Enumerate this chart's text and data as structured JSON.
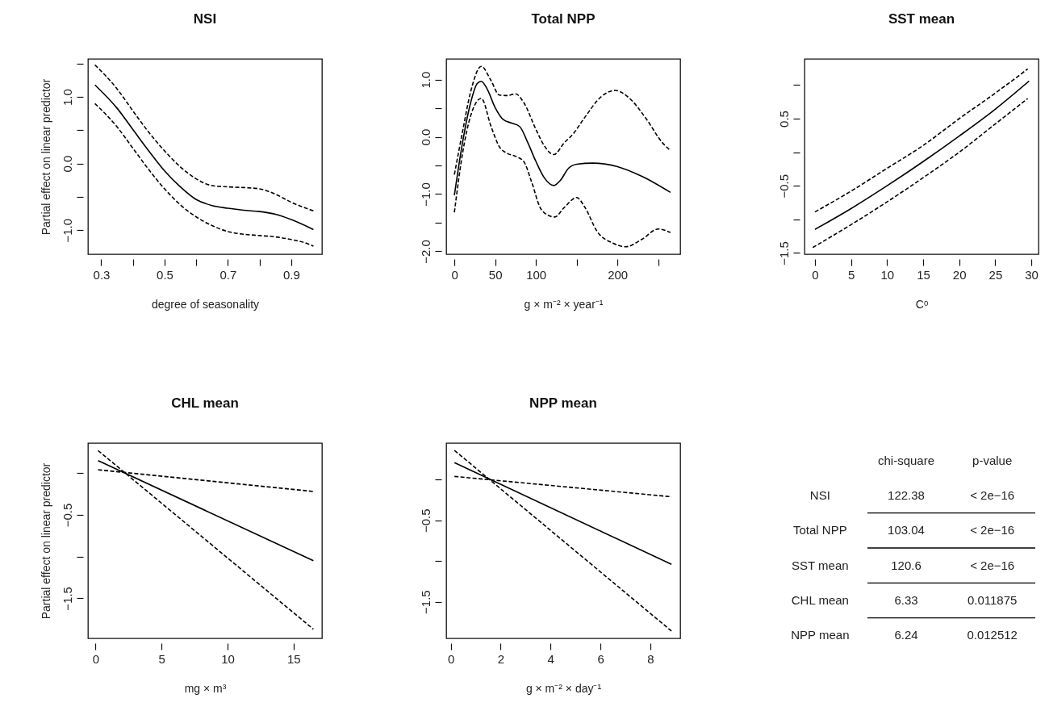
{
  "chart_data": [
    {
      "type": "line",
      "title": "NSI",
      "xlabel": "degree of seasonality",
      "ylabel": "Partial effect on linear predictor",
      "xlim": [
        0.258,
        0.997
      ],
      "ylim": [
        -1.36,
        1.57
      ],
      "xticks": [
        0.3,
        {
          "value": 0.4,
          "label": null
        },
        0.5,
        {
          "value": 0.6,
          "label": null
        },
        0.7,
        {
          "value": 0.8,
          "label": null
        },
        0.9
      ],
      "yticks": [
        {
          "value": -1,
          "label": "−1.0"
        },
        {
          "value": -0.5,
          "label": null
        },
        {
          "value": 0,
          "label": "0.0"
        },
        {
          "value": 0.5,
          "label": null
        },
        {
          "value": 1,
          "label": "1.0"
        },
        {
          "value": 1.5,
          "label": null
        }
      ],
      "series": [
        {
          "color": "#000000",
          "line_style": "solid",
          "x": [
            0.28,
            0.35,
            0.4,
            0.45,
            0.5,
            0.55,
            0.6,
            0.65,
            0.7,
            0.75,
            0.8,
            0.85,
            0.9,
            0.97
          ],
          "values": [
            1.18,
            0.83,
            0.51,
            0.19,
            -0.11,
            -0.35,
            -0.54,
            -0.63,
            -0.67,
            -0.7,
            -0.72,
            -0.76,
            -0.84,
            -0.99
          ]
        },
        {
          "color": "#000000",
          "line_style": "dashed",
          "x": [
            0.28,
            0.35,
            0.4,
            0.45,
            0.5,
            0.55,
            0.6,
            0.65,
            0.7,
            0.75,
            0.8,
            0.85,
            0.9,
            0.97
          ],
          "values": [
            1.48,
            1.12,
            0.79,
            0.47,
            0.19,
            -0.05,
            -0.23,
            -0.33,
            -0.35,
            -0.36,
            -0.38,
            -0.46,
            -0.58,
            -0.71
          ]
        },
        {
          "color": "#000000",
          "line_style": "dashed",
          "x": [
            0.28,
            0.35,
            0.4,
            0.45,
            0.5,
            0.55,
            0.6,
            0.65,
            0.7,
            0.75,
            0.8,
            0.85,
            0.9,
            0.95,
            0.97
          ],
          "values": [
            0.9,
            0.55,
            0.23,
            -0.09,
            -0.38,
            -0.62,
            -0.8,
            -0.93,
            -1.02,
            -1.06,
            -1.08,
            -1.1,
            -1.14,
            -1.2,
            -1.24
          ]
        }
      ]
    },
    {
      "type": "line",
      "title": "Total NPP",
      "xlabel": "g × m⁻² × year⁻¹",
      "xlim": [
        -10,
        277
      ],
      "ylim": [
        -2.05,
        1.36
      ],
      "xticks": [
        0,
        50,
        100,
        {
          "value": 150,
          "label": null
        },
        200,
        {
          "value": 250,
          "label": null
        }
      ],
      "yticks": [
        {
          "value": -2,
          "label": "−2.0"
        },
        {
          "value": -1.5,
          "label": null
        },
        {
          "value": -1,
          "label": "−1.0"
        },
        {
          "value": -0.5,
          "label": null
        },
        {
          "value": 0,
          "label": "0.0"
        },
        {
          "value": 0.5,
          "label": null
        },
        {
          "value": 1,
          "label": "1.0"
        }
      ],
      "series": [
        {
          "color": "#000000",
          "line_style": "solid",
          "x": [
            0,
            10,
            20,
            28,
            33,
            40,
            50,
            60,
            70,
            80,
            90,
            100,
            110,
            122,
            130,
            140,
            150,
            170,
            200,
            230,
            265
          ],
          "values": [
            -1.02,
            -0.1,
            0.6,
            0.93,
            0.97,
            0.84,
            0.51,
            0.3,
            0.24,
            0.18,
            -0.1,
            -0.43,
            -0.71,
            -0.85,
            -0.76,
            -0.55,
            -0.48,
            -0.46,
            -0.52,
            -0.69,
            -0.97
          ]
        },
        {
          "color": "#000000",
          "line_style": "dashed",
          "x": [
            0,
            10,
            20,
            33,
            45,
            55,
            65,
            75,
            85,
            100,
            110,
            122,
            135,
            145,
            160,
            180,
            197,
            215,
            235,
            255,
            265
          ],
          "values": [
            -0.66,
            0.09,
            0.79,
            1.23,
            0.98,
            0.73,
            0.72,
            0.75,
            0.6,
            0.13,
            -0.15,
            -0.31,
            -0.1,
            0.04,
            0.34,
            0.7,
            0.81,
            0.67,
            0.32,
            -0.1,
            -0.24
          ]
        },
        {
          "color": "#000000",
          "line_style": "dashed",
          "x": [
            0,
            10,
            20,
            33,
            45,
            55,
            65,
            75,
            85,
            95,
            105,
            115,
            123,
            135,
            150,
            160,
            175,
            195,
            210,
            230,
            250,
            265
          ],
          "values": [
            -1.32,
            -0.29,
            0.37,
            0.67,
            0.18,
            -0.17,
            -0.29,
            -0.34,
            -0.43,
            -0.8,
            -1.23,
            -1.37,
            -1.4,
            -1.23,
            -1.06,
            -1.23,
            -1.65,
            -1.86,
            -1.92,
            -1.79,
            -1.61,
            -1.67
          ]
        }
      ]
    },
    {
      "type": "line",
      "title": "SST mean",
      "xlabel": "Cᵒ",
      "xlim": [
        -1.45,
        31
      ],
      "ylim": [
        -1.52,
        1.39
      ],
      "xticks": [
        0,
        5,
        10,
        15,
        20,
        25,
        30
      ],
      "yticks": [
        {
          "value": -1.5,
          "label": "−1.5"
        },
        {
          "value": -1,
          "label": null
        },
        {
          "value": -0.5,
          "label": "−0.5"
        },
        {
          "value": 0,
          "label": null
        },
        0.5,
        {
          "value": 1,
          "label": null
        }
      ],
      "series": [
        {
          "color": "#000000",
          "line_style": "solid",
          "x": [
            0,
            5,
            10,
            15,
            20,
            25,
            29.7
          ],
          "values": [
            -1.15,
            -0.84,
            -0.5,
            -0.14,
            0.24,
            0.64,
            1.06
          ]
        },
        {
          "color": "#000000",
          "line_style": "dashed",
          "x": [
            0,
            5,
            10,
            15,
            20,
            25,
            29.5
          ],
          "values": [
            -0.89,
            -0.58,
            -0.24,
            0.1,
            0.5,
            0.88,
            1.24
          ]
        },
        {
          "color": "#000000",
          "line_style": "dashed",
          "x": [
            -0.3,
            5,
            10,
            15,
            20,
            25,
            29.5
          ],
          "values": [
            -1.42,
            -1.08,
            -0.74,
            -0.38,
            0,
            0.42,
            0.8
          ]
        }
      ]
    },
    {
      "type": "line",
      "title": "CHL mean",
      "xlabel": "mg × m³",
      "ylabel": "Partial effect on linear predictor",
      "xlim": [
        -0.57,
        17.15
      ],
      "ylim": [
        -1.98,
        0.36
      ],
      "xticks": [
        0,
        5,
        10,
        15
      ],
      "yticks": [
        {
          "value": -1.5,
          "label": "−1.5"
        },
        {
          "value": -1,
          "label": null
        },
        {
          "value": -0.5,
          "label": "−0.5"
        },
        {
          "value": 0,
          "label": null
        }
      ],
      "series": [
        {
          "color": "#000000",
          "line_style": "solid",
          "x": [
            0.2,
            16.5
          ],
          "values": [
            0.15,
            -1.05
          ]
        },
        {
          "color": "#000000",
          "line_style": "dashed",
          "x": [
            0.2,
            16.5
          ],
          "values": [
            0.04,
            -0.22
          ]
        },
        {
          "color": "#000000",
          "line_style": "dashed",
          "x": [
            0.2,
            16.5
          ],
          "values": [
            0.27,
            -1.87
          ]
        }
      ]
    },
    {
      "type": "line",
      "title": "NPP mean",
      "xlabel": "g × m⁻² × day⁻¹",
      "xlim": [
        -0.18,
        9.2
      ],
      "ylim": [
        -1.95,
        0.45
      ],
      "xticks": [
        0,
        2,
        4,
        6,
        8
      ],
      "yticks": [
        {
          "value": -1.5,
          "label": "−1.5"
        },
        {
          "value": -1,
          "label": null
        },
        {
          "value": -0.5,
          "label": "−0.5"
        },
        {
          "value": 0,
          "label": null
        }
      ],
      "series": [
        {
          "color": "#000000",
          "line_style": "solid",
          "x": [
            0.15,
            8.85
          ],
          "values": [
            0.21,
            -1.04
          ]
        },
        {
          "color": "#000000",
          "line_style": "dashed",
          "x": [
            0.15,
            8.85
          ],
          "values": [
            0.04,
            -0.21
          ]
        },
        {
          "color": "#000000",
          "line_style": "dashed",
          "x": [
            0.15,
            8.85
          ],
          "values": [
            0.36,
            -1.86
          ]
        }
      ]
    },
    {
      "type": "other",
      "data_labels": true,
      "categories": [
        "NSI",
        "Total NPP",
        "SST mean",
        "CHL mean",
        "NPP mean"
      ],
      "series": [
        {
          "name": "chi-square",
          "values": [
            122.38,
            103.04,
            120.6,
            6.33,
            6.24
          ]
        },
        {
          "name": "p-value",
          "values": [
            null,
            null,
            null,
            0.011875,
            0.012512
          ]
        }
      ],
      "annotations": [
        "< 2e−16",
        "< 2e−16",
        "< 2e−16"
      ]
    }
  ]
}
